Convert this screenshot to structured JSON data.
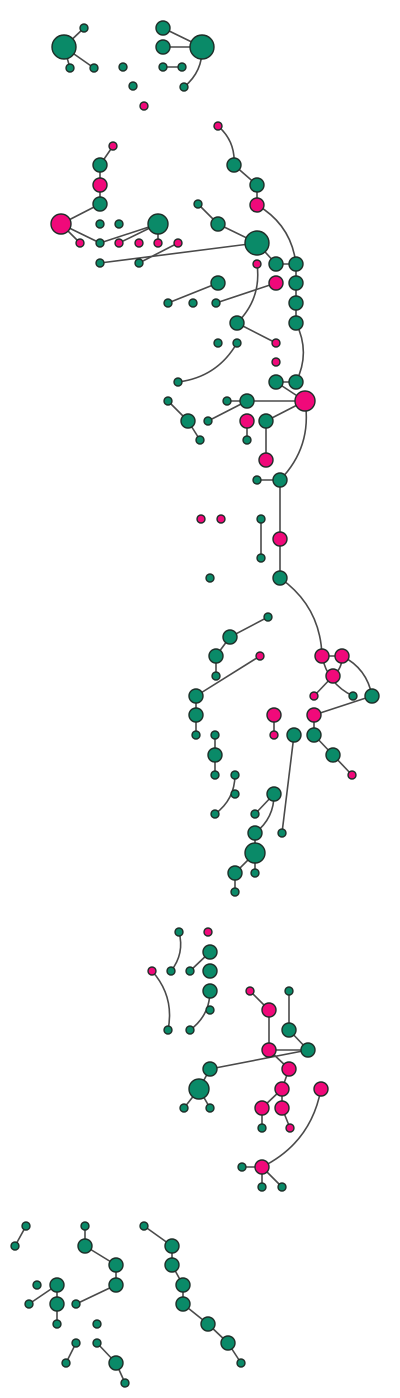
{
  "colors": {
    "background": "#ffffff",
    "green": "#0a8a68",
    "magenta": "#f0097a",
    "edge": "#4a4a4a",
    "outline": "#1e2e28"
  }
}
